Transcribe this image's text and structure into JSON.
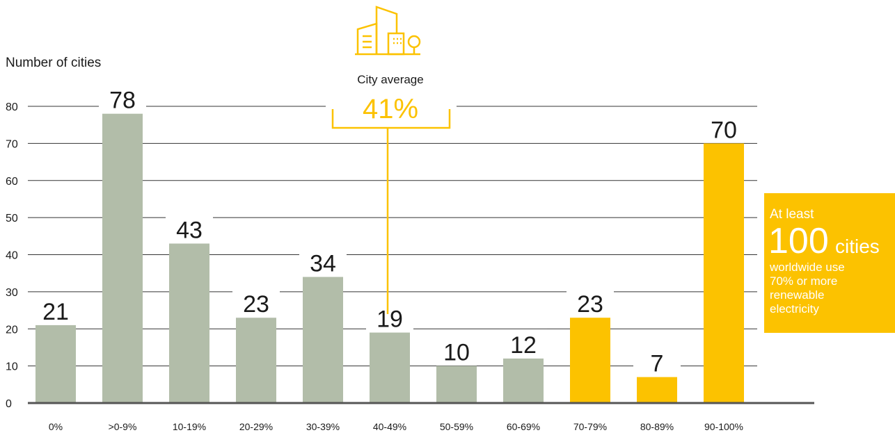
{
  "chart_data": {
    "type": "bar",
    "y_label": "Number of cities",
    "categories": [
      "0%",
      ">0-9%",
      "10-19%",
      "20-29%",
      "30-39%",
      "40-49%",
      "50-59%",
      "60-69%",
      "70-79%",
      "80-89%",
      "90-100%"
    ],
    "values": [
      21,
      78,
      43,
      23,
      34,
      19,
      10,
      12,
      23,
      7,
      70
    ],
    "colors": [
      "#b2bda9",
      "#b2bda9",
      "#b2bda9",
      "#b2bda9",
      "#b2bda9",
      "#b2bda9",
      "#b2bda9",
      "#b2bda9",
      "#fcc200",
      "#fcc200",
      "#fcc200"
    ],
    "ylim": [
      0,
      80
    ],
    "yticks": [
      0,
      10,
      20,
      30,
      40,
      50,
      60,
      70,
      80
    ],
    "grid": true,
    "average_callout": {
      "label": "City average",
      "value": "41%"
    },
    "highlight_box": {
      "lead": "At least",
      "number": "100",
      "unit": "cities",
      "lines": [
        "worldwide use",
        "70% or more",
        "renewable",
        "electricity"
      ]
    }
  }
}
